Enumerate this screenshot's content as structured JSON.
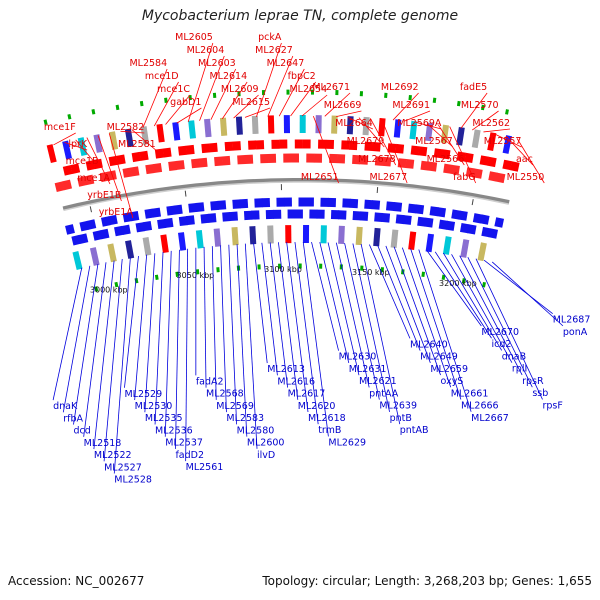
{
  "title": "Mycobacterium leprae TN, complete genome",
  "footer": {
    "accession": "Accession: NC_002677",
    "summary": "Topology: circular; Length: 3,268,203 bp; Genes: 1,655"
  },
  "colors": {
    "forward_label": "#e00000",
    "reverse_label": "#0000cc",
    "backbone": "#888888"
  },
  "ticks": [
    {
      "bp": 3000,
      "label": "3000 kbp"
    },
    {
      "bp": 3050,
      "label": "3050 kbp"
    },
    {
      "bp": 3100,
      "label": "3100 kbp"
    },
    {
      "bp": 3150,
      "label": "3150 kbp"
    },
    {
      "bp": 3200,
      "label": "3200 kbp"
    }
  ],
  "top_labels": [
    {
      "text": "mce1F"
    },
    {
      "text": "lprK"
    },
    {
      "text": "mce1B"
    },
    {
      "text": "mce1A"
    },
    {
      "text": "yrbE1B"
    },
    {
      "text": "yrbE1A"
    },
    {
      "text": "ML2582"
    },
    {
      "text": "ML2581"
    },
    {
      "text": "ML2584"
    },
    {
      "text": "mce1D"
    },
    {
      "text": "mce1C"
    },
    {
      "text": "gabD1"
    },
    {
      "text": "ML2605"
    },
    {
      "text": "ML2604"
    },
    {
      "text": "ML2603"
    },
    {
      "text": "ML2614"
    },
    {
      "text": "ML2609"
    },
    {
      "text": "ML2615"
    },
    {
      "text": "pckA"
    },
    {
      "text": "ML2627"
    },
    {
      "text": "ML2647"
    },
    {
      "text": "fbpC2"
    },
    {
      "text": "ML2654"
    },
    {
      "text": "ML2651"
    },
    {
      "text": "ML2671"
    },
    {
      "text": "ML2669"
    },
    {
      "text": "ML2664"
    },
    {
      "text": "ML2679"
    },
    {
      "text": "ML2678"
    },
    {
      "text": "ML2677"
    },
    {
      "text": "ML2692"
    },
    {
      "text": "ML2691"
    },
    {
      "text": "ML2569A"
    },
    {
      "text": "ML2567"
    },
    {
      "text": "ML2566"
    },
    {
      "text": "fabG"
    },
    {
      "text": "fadE5"
    },
    {
      "text": "ML2570"
    },
    {
      "text": "ML2562"
    },
    {
      "text": "ML2557"
    },
    {
      "text": "aac"
    },
    {
      "text": "ML2550"
    }
  ],
  "bottom_labels": [
    {
      "text": "dnaK"
    },
    {
      "text": "rfbA"
    },
    {
      "text": "dcd"
    },
    {
      "text": "ML2518"
    },
    {
      "text": "ML2522"
    },
    {
      "text": "ML2527"
    },
    {
      "text": "ML2528"
    },
    {
      "text": "ML2529"
    },
    {
      "text": "ML2530"
    },
    {
      "text": "ML2535"
    },
    {
      "text": "ML2536"
    },
    {
      "text": "ML2537"
    },
    {
      "text": "fadD2"
    },
    {
      "text": "ML2561"
    },
    {
      "text": "fadA2"
    },
    {
      "text": "ML2568"
    },
    {
      "text": "ML2569"
    },
    {
      "text": "ML2583"
    },
    {
      "text": "ML2580"
    },
    {
      "text": "ML2600"
    },
    {
      "text": "ilvD"
    },
    {
      "text": "ML2613"
    },
    {
      "text": "ML2616"
    },
    {
      "text": "ML2617"
    },
    {
      "text": "ML2620"
    },
    {
      "text": "ML2618"
    },
    {
      "text": "trmB"
    },
    {
      "text": "ML2629"
    },
    {
      "text": "ML2630"
    },
    {
      "text": "ML2631"
    },
    {
      "text": "ML2621"
    },
    {
      "text": "pntAA"
    },
    {
      "text": "ML2639"
    },
    {
      "text": "pntB"
    },
    {
      "text": "pntAB"
    },
    {
      "text": "ML2640"
    },
    {
      "text": "ML2649"
    },
    {
      "text": "ML2659"
    },
    {
      "text": "oxyS"
    },
    {
      "text": "ML2661"
    },
    {
      "text": "ML2666"
    },
    {
      "text": "ML2667"
    },
    {
      "text": "ML2670"
    },
    {
      "text": "icd2"
    },
    {
      "text": "dnaB"
    },
    {
      "text": "rplI"
    },
    {
      "text": "rpsR"
    },
    {
      "text": "ssb"
    },
    {
      "text": "rpsF"
    },
    {
      "text": "ML2687"
    },
    {
      "text": "ponA"
    }
  ]
}
